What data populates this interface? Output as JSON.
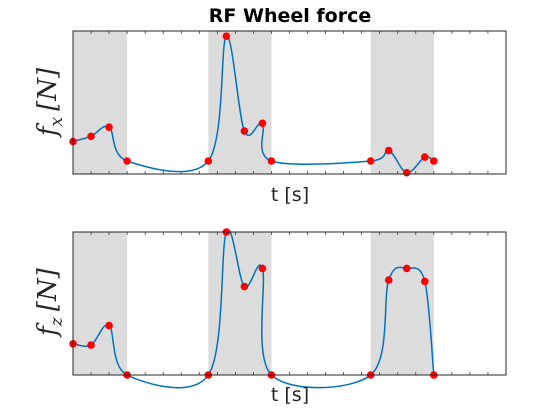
{
  "chart_data": {
    "title": "RF Wheel force",
    "type": "line",
    "line_color": "#0072BD",
    "marker_color": "#FF0000",
    "shade_color": "#DCDCDC",
    "shaded_intervals": [
      [
        0.0,
        0.3
      ],
      [
        0.75,
        1.1
      ],
      [
        1.65,
        2.0
      ]
    ],
    "subplots": [
      {
        "name": "fx",
        "xlabel": "t [s]",
        "ylabel": "f_x [N]",
        "ylabel_main": "f",
        "ylabel_sub": "x",
        "ylabel_unit": "[N]",
        "xlim": [
          0,
          2.4
        ],
        "ylim": [
          -0.1,
          1.0
        ],
        "x": [
          0.0,
          0.1,
          0.2,
          0.3,
          0.75,
          0.85,
          0.95,
          1.05,
          1.1,
          1.65,
          1.75,
          1.85,
          1.95,
          2.0
        ],
        "y": [
          0.15,
          0.19,
          0.26,
          0.0,
          0.0,
          0.96,
          0.23,
          0.29,
          0.0,
          0.0,
          0.08,
          -0.09,
          0.03,
          0.0
        ]
      },
      {
        "name": "fz",
        "xlabel": "t [s]",
        "ylabel": "f_z [N]",
        "ylabel_main": "f",
        "ylabel_sub": "z",
        "ylabel_unit": "[N]",
        "xlim": [
          0,
          2.4
        ],
        "ylim": [
          -0.1,
          1.0
        ],
        "x": [
          0.0,
          0.1,
          0.2,
          0.3,
          0.75,
          0.85,
          0.95,
          1.05,
          1.1,
          1.65,
          1.75,
          1.85,
          1.95,
          2.0
        ],
        "y": [
          0.14,
          0.13,
          0.28,
          -0.1,
          -0.1,
          1.0,
          0.58,
          0.72,
          -0.1,
          -0.1,
          0.63,
          0.72,
          0.62,
          -0.1
        ]
      }
    ]
  }
}
